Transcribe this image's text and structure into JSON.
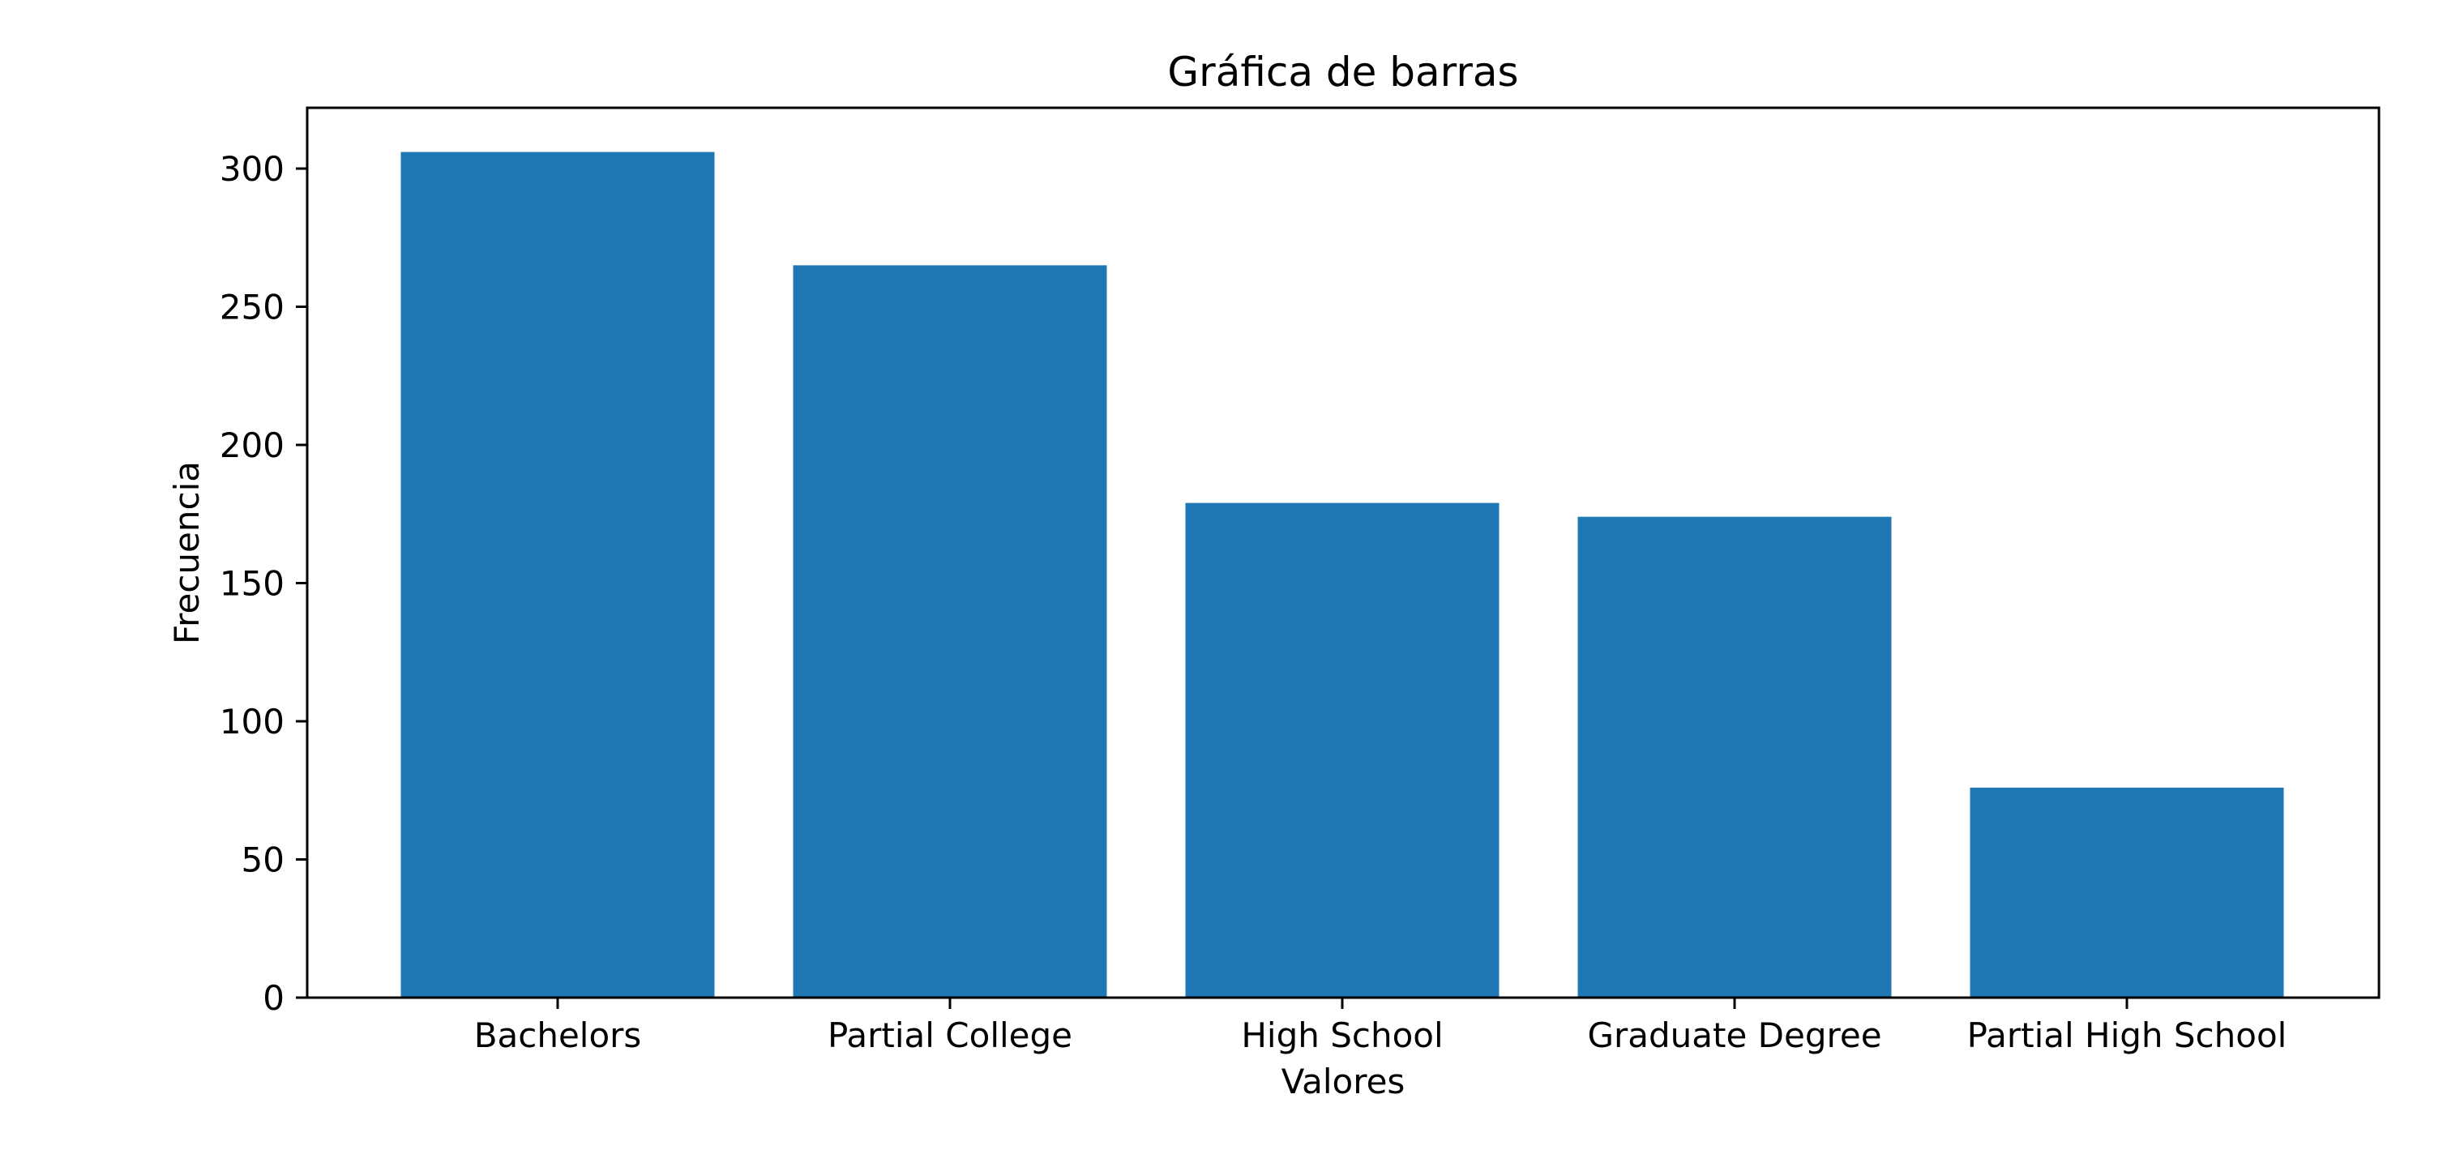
{
  "chart_data": {
    "type": "bar",
    "title": "Gráfica de barras",
    "xlabel": "Valores",
    "ylabel": "Frecuencia",
    "categories": [
      "Bachelors",
      "Partial College",
      "High School",
      "Graduate Degree",
      "Partial High School"
    ],
    "values": [
      306,
      265,
      179,
      174,
      76
    ],
    "ylim": [
      0,
      322
    ],
    "yticks": [
      0,
      50,
      100,
      150,
      200,
      250,
      300
    ],
    "ytick_labels": [
      "0",
      "50",
      "100",
      "150",
      "200",
      "250",
      "300"
    ],
    "bar_color": "#1f77b4",
    "grid": false,
    "legend": "none"
  }
}
